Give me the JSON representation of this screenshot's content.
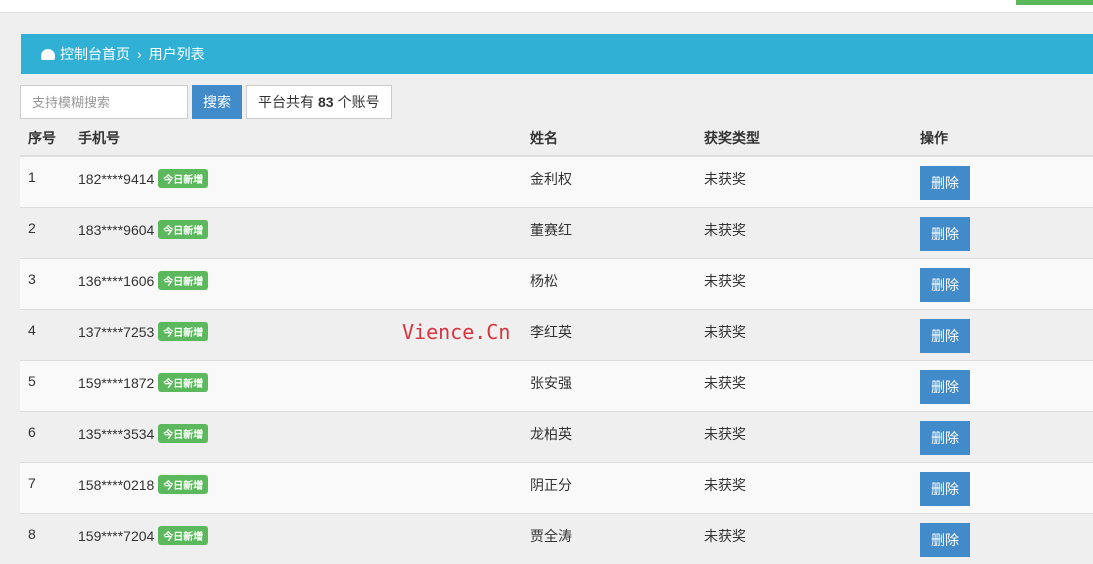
{
  "breadcrumb": {
    "home": "控制台首页",
    "current": "用户列表",
    "icon": "dashboard-icon"
  },
  "search": {
    "placeholder": "支持模糊搜索",
    "button": "搜索",
    "count_prefix": "平台共有",
    "count": "83",
    "count_suffix": "个账号"
  },
  "table": {
    "headers": [
      "序号",
      "手机号",
      "姓名",
      "获奖类型",
      "操作"
    ],
    "rows": [
      {
        "no": "1",
        "phone": "182****9414",
        "badge": "今日新增",
        "name": "金利权",
        "award": "未获奖",
        "action": "删除"
      },
      {
        "no": "2",
        "phone": "183****9604",
        "badge": "今日新增",
        "name": "董赛红",
        "award": "未获奖",
        "action": "删除"
      },
      {
        "no": "3",
        "phone": "136****1606",
        "badge": "今日新增",
        "name": "杨松",
        "award": "未获奖",
        "action": "删除"
      },
      {
        "no": "4",
        "phone": "137****7253",
        "badge": "今日新增",
        "name": "李红英",
        "award": "未获奖",
        "action": "删除"
      },
      {
        "no": "5",
        "phone": "159****1872",
        "badge": "今日新增",
        "name": "张安强",
        "award": "未获奖",
        "action": "删除"
      },
      {
        "no": "6",
        "phone": "135****3534",
        "badge": "今日新增",
        "name": "龙柏英",
        "award": "未获奖",
        "action": "删除"
      },
      {
        "no": "7",
        "phone": "158****0218",
        "badge": "今日新增",
        "name": "阴正分",
        "award": "未获奖",
        "action": "删除"
      },
      {
        "no": "8",
        "phone": "159****7204",
        "badge": "今日新增",
        "name": "贾全涛",
        "award": "未获奖",
        "action": "删除"
      }
    ]
  },
  "watermark": "Vience.Cn"
}
